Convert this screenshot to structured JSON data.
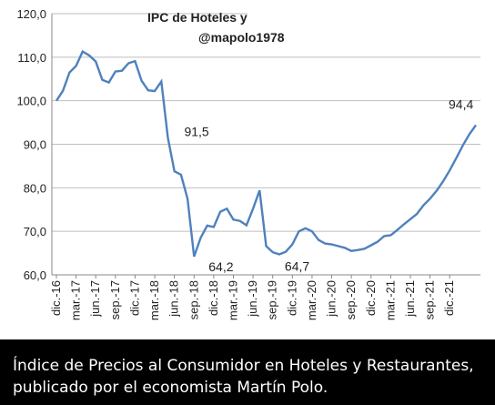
{
  "chart_data": {
    "type": "line",
    "title": "IPC de Hoteles y",
    "subtitle": "@mapolo1978",
    "xlabel": "",
    "ylabel": "",
    "ylim": [
      60,
      120
    ],
    "yticks": [
      "120,0",
      "110,0",
      "100,0",
      "90,0",
      "80,0",
      "70,0",
      "60,0"
    ],
    "xticks": [
      "dic.-16",
      "mar.-17",
      "jun.-17",
      "sep.-17",
      "dic.-17",
      "mar.-18",
      "jun.-18",
      "sep.-18",
      "dic.-18",
      "mar.-19",
      "jun.-19",
      "sep.-19",
      "dic.-19",
      "mar.-20",
      "jun.-20",
      "sep.-20",
      "dic.-20",
      "mar.-21",
      "jun.-21",
      "sep.-21",
      "dic.-21"
    ],
    "grid": true,
    "series": [
      {
        "color": "#4f81bd",
        "values": [
          100.0,
          102.3,
          106.5,
          108.0,
          111.3,
          110.4,
          109.0,
          104.8,
          104.2,
          106.7,
          106.9,
          108.6,
          109.1,
          104.6,
          102.4,
          102.2,
          104.4,
          91.5,
          83.8,
          83.0,
          77.5,
          64.2,
          68.5,
          71.3,
          71.0,
          74.5,
          75.2,
          72.7,
          72.4,
          71.4,
          75.2,
          79.4,
          66.6,
          65.2,
          64.7,
          65.3,
          67.0,
          70.0,
          70.7,
          70.0,
          68.0,
          67.2,
          67.0,
          66.6,
          66.2,
          65.5,
          65.7,
          66.0,
          66.8,
          67.6,
          68.9,
          69.1,
          70.3,
          71.6,
          72.8,
          74.0,
          76.0,
          77.5,
          79.3,
          81.5,
          84.0,
          86.8,
          89.7,
          92.3,
          94.4
        ]
      }
    ],
    "annotations": [
      {
        "index": 17,
        "text": "91,5"
      },
      {
        "index": 21,
        "text": "64,2"
      },
      {
        "index": 34,
        "text": "64,7"
      },
      {
        "index": 64,
        "text": "94,4"
      }
    ]
  },
  "caption": "Índice de Precios al Consumidor en Hoteles y Restaurantes, publicado por el economista Martín Polo."
}
